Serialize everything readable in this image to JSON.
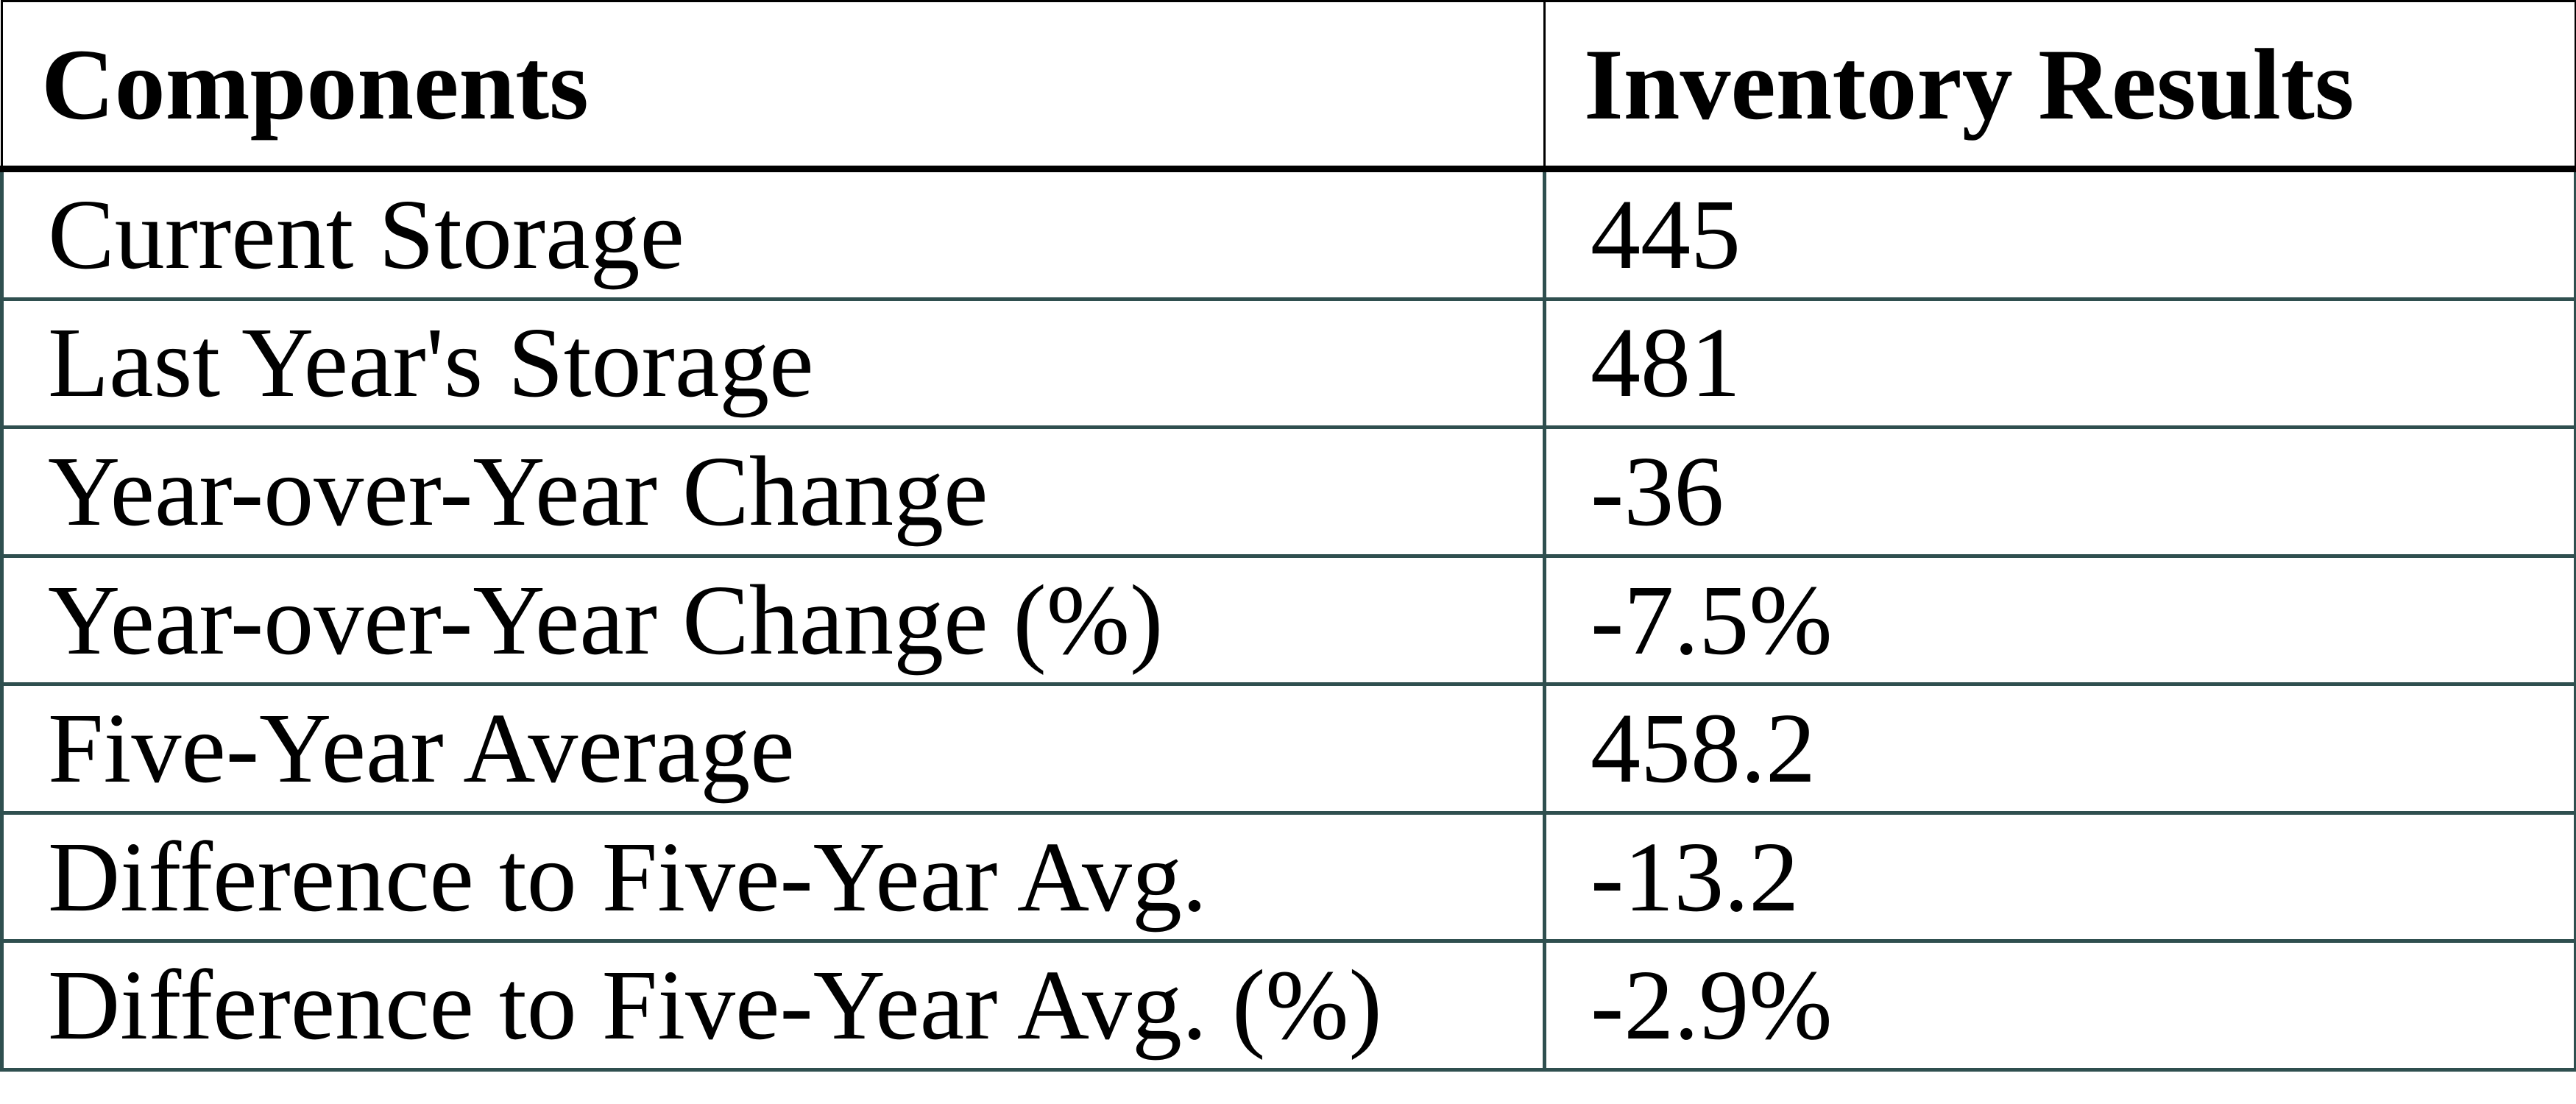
{
  "table": {
    "title": "inventory-summary-table",
    "header": {
      "component_label": "Components",
      "result_label": "Inventory Results"
    },
    "rows": [
      {
        "component": "Current Storage",
        "result": "445"
      },
      {
        "component": "Last Year's Storage",
        "result": "481"
      },
      {
        "component": "Year-over-Year Change",
        "result": "-36"
      },
      {
        "component": "Year-over-Year Change (%)",
        "result": "-7.5%"
      },
      {
        "component": "Five-Year Average",
        "result": "458.2"
      },
      {
        "component": "Difference to Five-Year Avg.",
        "result": "-13.2"
      },
      {
        "component": "Difference to Five-Year Avg. (%)",
        "result": "-2.9%"
      }
    ],
    "style": {
      "header_border_color": "#000000",
      "body_border_color": "#2F4F4F",
      "text_color": "#000000",
      "background": "#FFFFFF"
    }
  },
  "chart_data": {
    "type": "table",
    "columns": [
      "Components",
      "Inventory Results"
    ],
    "rows": [
      [
        "Current Storage",
        "445"
      ],
      [
        "Last Year's Storage",
        "481"
      ],
      [
        "Year-over-Year Change",
        "-36"
      ],
      [
        "Year-over-Year Change (%)",
        "-7.5%"
      ],
      [
        "Five-Year Average",
        "458.2"
      ],
      [
        "Difference to Five-Year Avg.",
        "-13.2"
      ],
      [
        "Difference to Five-Year Avg. (%)",
        "-2.9%"
      ]
    ]
  }
}
